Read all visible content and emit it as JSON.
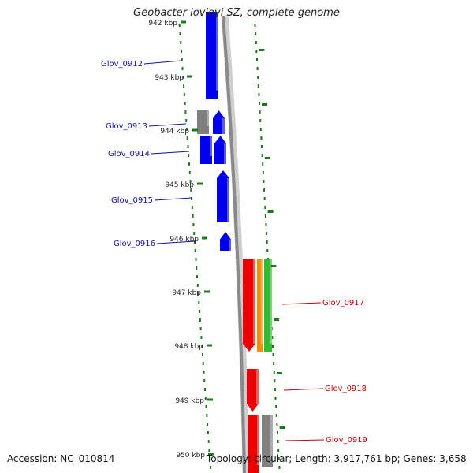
{
  "title": "Geobacter lovleyi SZ, complete genome",
  "footer": {
    "accession": "Accession: NC_010814",
    "stats": "Topology: circular; Length: 3,917,761 bp; Genes: 3,658"
  },
  "colors": {
    "forward_gene": "#0000ee",
    "reverse_gene": "#ee0000",
    "other_feature": "#7f7f7f",
    "orange_feature": "#f09000",
    "green_feature": "#33bb33",
    "backbone": "#8a8a8a",
    "tick": "#1a7a1a",
    "forward_label": "#1010aa",
    "reverse_label": "#cc0000"
  },
  "kbp_ticks": [
    {
      "label": "942 kbp"
    },
    {
      "label": "943 kbp"
    },
    {
      "label": "944 kbp"
    },
    {
      "label": "945 kbp"
    },
    {
      "label": "946 kbp"
    },
    {
      "label": "947 kbp"
    },
    {
      "label": "948 kbp"
    },
    {
      "label": "949 kbp"
    },
    {
      "label": "950 kbp"
    }
  ],
  "gene_labels": [
    {
      "label": "Glov_0912",
      "strand": "forward"
    },
    {
      "label": "Glov_0913",
      "strand": "forward"
    },
    {
      "label": "Glov_0914",
      "strand": "forward"
    },
    {
      "label": "Glov_0915",
      "strand": "forward"
    },
    {
      "label": "Glov_0916",
      "strand": "forward"
    },
    {
      "label": "Glov_0917",
      "strand": "reverse"
    },
    {
      "label": "Glov_0918",
      "strand": "reverse"
    },
    {
      "label": "Glov_0919",
      "strand": "reverse"
    }
  ]
}
